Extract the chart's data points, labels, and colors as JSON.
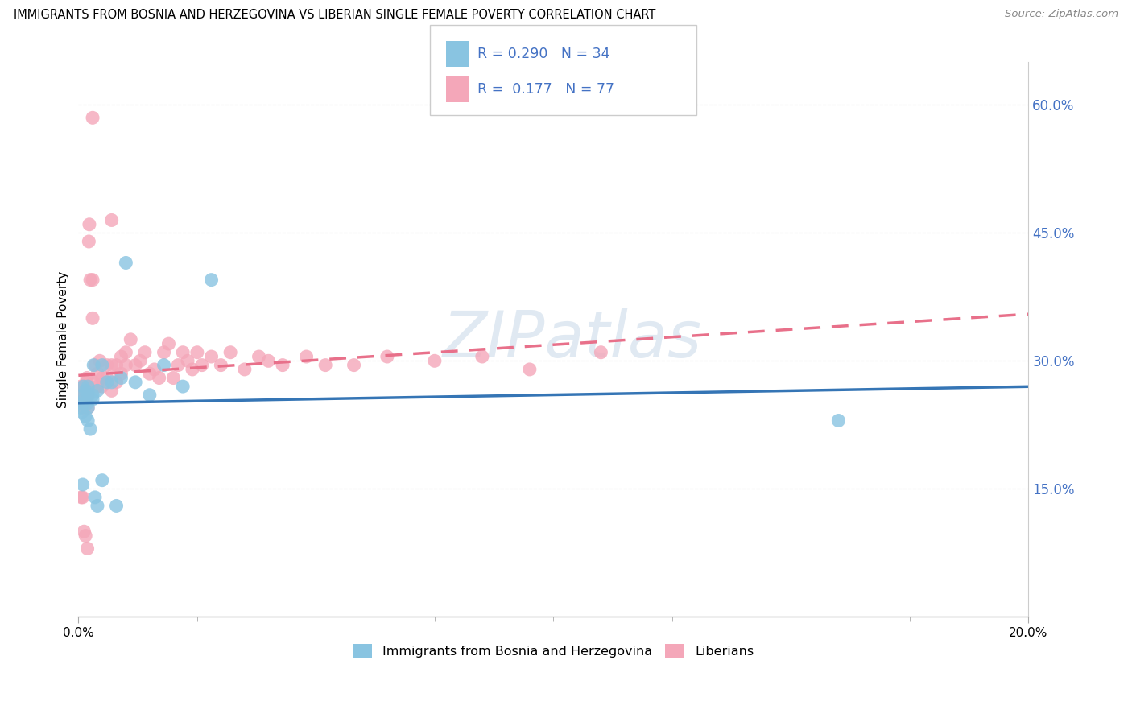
{
  "title": "IMMIGRANTS FROM BOSNIA AND HERZEGOVINA VS LIBERIAN SINGLE FEMALE POVERTY CORRELATION CHART",
  "source": "Source: ZipAtlas.com",
  "ylabel": "Single Female Poverty",
  "right_ytick_vals": [
    0.15,
    0.3,
    0.45,
    0.6
  ],
  "legend1_label": "Immigrants from Bosnia and Herzegovina",
  "legend2_label": "Liberians",
  "R1": "0.290",
  "N1": "34",
  "R2": "0.177",
  "N2": "77",
  "color_blue": "#89c4e1",
  "color_pink": "#f4a7b9",
  "line_blue": "#3575b5",
  "line_pink": "#e8708a",
  "watermark": "ZIPatlas",
  "xlim": [
    0.0,
    0.2
  ],
  "ylim": [
    0.0,
    0.65
  ],
  "bosnia_x": [
    0.0005,
    0.0008,
    0.001,
    0.001,
    0.0012,
    0.0013,
    0.0015,
    0.0015,
    0.0018,
    0.002,
    0.002,
    0.002,
    0.0022,
    0.0025,
    0.003,
    0.003,
    0.0032,
    0.0035,
    0.004,
    0.004,
    0.005,
    0.005,
    0.006,
    0.007,
    0.008,
    0.009,
    0.01,
    0.012,
    0.015,
    0.018,
    0.022,
    0.028,
    0.16,
    0.0009
  ],
  "bosnia_y": [
    0.245,
    0.24,
    0.25,
    0.27,
    0.26,
    0.255,
    0.265,
    0.235,
    0.25,
    0.23,
    0.245,
    0.27,
    0.26,
    0.22,
    0.255,
    0.26,
    0.295,
    0.14,
    0.13,
    0.265,
    0.16,
    0.295,
    0.275,
    0.275,
    0.13,
    0.28,
    0.415,
    0.275,
    0.26,
    0.295,
    0.27,
    0.395,
    0.23,
    0.155
  ],
  "liberian_x": [
    0.0004,
    0.0005,
    0.0006,
    0.0007,
    0.0008,
    0.0008,
    0.001,
    0.001,
    0.0012,
    0.0013,
    0.0014,
    0.0015,
    0.0016,
    0.0017,
    0.0018,
    0.002,
    0.002,
    0.0022,
    0.0023,
    0.0025,
    0.003,
    0.003,
    0.0032,
    0.0035,
    0.004,
    0.004,
    0.0045,
    0.005,
    0.005,
    0.006,
    0.006,
    0.007,
    0.007,
    0.008,
    0.008,
    0.009,
    0.009,
    0.01,
    0.01,
    0.011,
    0.012,
    0.013,
    0.014,
    0.015,
    0.016,
    0.017,
    0.018,
    0.019,
    0.02,
    0.021,
    0.022,
    0.023,
    0.024,
    0.025,
    0.026,
    0.028,
    0.03,
    0.032,
    0.035,
    0.038,
    0.04,
    0.043,
    0.048,
    0.052,
    0.058,
    0.065,
    0.075,
    0.085,
    0.095,
    0.11,
    0.0006,
    0.0009,
    0.0012,
    0.0015,
    0.0019,
    0.003,
    0.007
  ],
  "liberian_y": [
    0.265,
    0.27,
    0.255,
    0.26,
    0.265,
    0.25,
    0.255,
    0.26,
    0.245,
    0.27,
    0.26,
    0.255,
    0.265,
    0.275,
    0.28,
    0.245,
    0.26,
    0.44,
    0.46,
    0.395,
    0.395,
    0.35,
    0.275,
    0.295,
    0.27,
    0.285,
    0.3,
    0.28,
    0.27,
    0.295,
    0.28,
    0.295,
    0.265,
    0.295,
    0.275,
    0.285,
    0.305,
    0.295,
    0.31,
    0.325,
    0.295,
    0.3,
    0.31,
    0.285,
    0.29,
    0.28,
    0.31,
    0.32,
    0.28,
    0.295,
    0.31,
    0.3,
    0.29,
    0.31,
    0.295,
    0.305,
    0.295,
    0.31,
    0.29,
    0.305,
    0.3,
    0.295,
    0.305,
    0.295,
    0.295,
    0.305,
    0.3,
    0.305,
    0.29,
    0.31,
    0.14,
    0.14,
    0.1,
    0.095,
    0.08,
    0.585,
    0.465
  ],
  "xtick_positions": [
    0.0,
    0.2
  ],
  "xtick_labels": [
    "0.0%",
    "20.0%"
  ]
}
